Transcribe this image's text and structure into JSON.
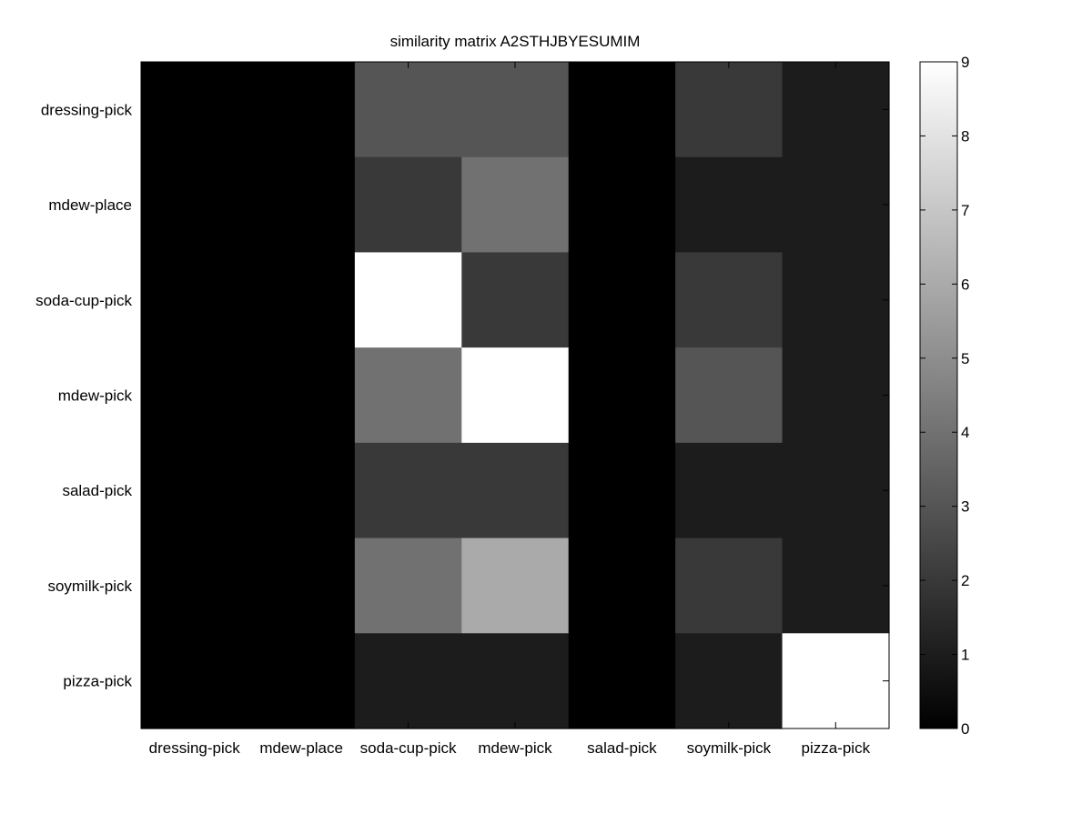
{
  "chart_data": {
    "type": "heatmap",
    "title": "similarity matrix A2STHJBYESUMIM",
    "rows": [
      "dressing-pick",
      "mdew-place",
      "soda-cup-pick",
      "mdew-pick",
      "salad-pick",
      "soymilk-pick",
      "pizza-pick"
    ],
    "columns": [
      "dressing-pick",
      "mdew-place",
      "soda-cup-pick",
      "mdew-pick",
      "salad-pick",
      "soymilk-pick",
      "pizza-pick"
    ],
    "values": [
      [
        0,
        0,
        3,
        3,
        0,
        2,
        1
      ],
      [
        0,
        0,
        2,
        4,
        0,
        1,
        1
      ],
      [
        0,
        0,
        9,
        2,
        0,
        2,
        1
      ],
      [
        0,
        0,
        4,
        9,
        0,
        3,
        1
      ],
      [
        0,
        0,
        2,
        2,
        0,
        1,
        1
      ],
      [
        0,
        0,
        4,
        6,
        0,
        2,
        1
      ],
      [
        0,
        0,
        1,
        1,
        0,
        1,
        9
      ]
    ],
    "colormap": "gray",
    "color_range": [
      0,
      9
    ],
    "colorbar_ticks": [
      "0",
      "1",
      "2",
      "3",
      "4",
      "5",
      "6",
      "7",
      "8",
      "9"
    ],
    "legend": "colorbar-right",
    "grid": false
  }
}
